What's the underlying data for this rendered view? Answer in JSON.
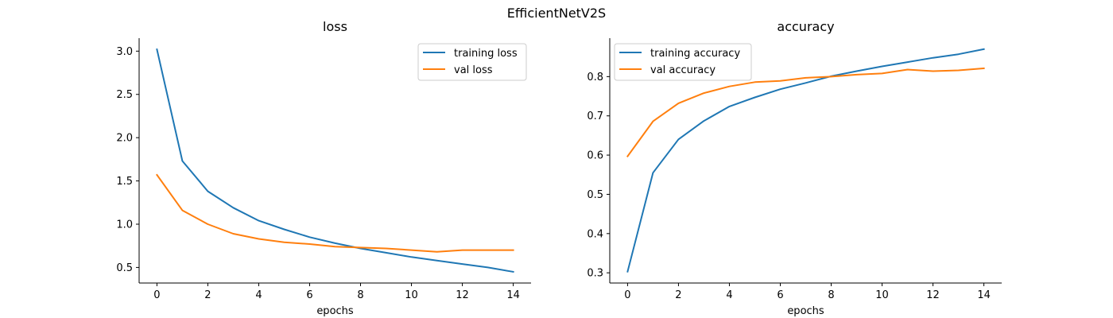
{
  "figure": {
    "suptitle": "EfficientNetV2S"
  },
  "chart_data": [
    {
      "type": "line",
      "title": "loss",
      "xlabel": "epochs",
      "ylabel": "",
      "x": [
        0,
        1,
        2,
        3,
        4,
        5,
        6,
        7,
        8,
        9,
        10,
        11,
        12,
        13,
        14
      ],
      "xlim": [
        -0.7,
        14.7
      ],
      "ylim": [
        0.32,
        3.15
      ],
      "xticks": [
        0,
        2,
        4,
        6,
        8,
        10,
        12,
        14
      ],
      "xtick_labels": [
        "0",
        "2",
        "4",
        "6",
        "8",
        "10",
        "12",
        "14"
      ],
      "yticks": [
        0.5,
        1.0,
        1.5,
        2.0,
        2.5,
        3.0
      ],
      "ytick_labels": [
        "0.5",
        "1.0",
        "1.5",
        "2.0",
        "2.5",
        "3.0"
      ],
      "legend_position": "top-right",
      "grid": false,
      "series": [
        {
          "name": "training loss",
          "color": "#1f77b4",
          "values": [
            3.02,
            1.73,
            1.38,
            1.19,
            1.04,
            0.94,
            0.85,
            0.78,
            0.72,
            0.67,
            0.62,
            0.58,
            0.54,
            0.5,
            0.45
          ]
        },
        {
          "name": "val loss",
          "color": "#ff7f0e",
          "values": [
            1.57,
            1.16,
            1.0,
            0.89,
            0.83,
            0.79,
            0.77,
            0.74,
            0.73,
            0.72,
            0.7,
            0.68,
            0.7,
            0.7,
            0.7
          ]
        }
      ]
    },
    {
      "type": "line",
      "title": "accuracy",
      "xlabel": "epochs",
      "ylabel": "",
      "x": [
        0,
        1,
        2,
        3,
        4,
        5,
        6,
        7,
        8,
        9,
        10,
        11,
        12,
        13,
        14
      ],
      "xlim": [
        -0.7,
        14.7
      ],
      "ylim": [
        0.274,
        0.898
      ],
      "xticks": [
        0,
        2,
        4,
        6,
        8,
        10,
        12,
        14
      ],
      "xtick_labels": [
        "0",
        "2",
        "4",
        "6",
        "8",
        "10",
        "12",
        "14"
      ],
      "yticks": [
        0.3,
        0.4,
        0.5,
        0.6,
        0.7,
        0.8
      ],
      "ytick_labels": [
        "0.3",
        "0.4",
        "0.5",
        "0.6",
        "0.7",
        "0.8"
      ],
      "legend_position": "top-left",
      "grid": false,
      "series": [
        {
          "name": "training accuracy",
          "color": "#1f77b4",
          "values": [
            0.303,
            0.555,
            0.64,
            0.687,
            0.724,
            0.747,
            0.768,
            0.784,
            0.801,
            0.814,
            0.826,
            0.837,
            0.848,
            0.857,
            0.87
          ]
        },
        {
          "name": "val accuracy",
          "color": "#ff7f0e",
          "values": [
            0.597,
            0.686,
            0.732,
            0.758,
            0.775,
            0.786,
            0.789,
            0.797,
            0.8,
            0.805,
            0.808,
            0.818,
            0.814,
            0.816,
            0.821
          ]
        }
      ]
    }
  ]
}
